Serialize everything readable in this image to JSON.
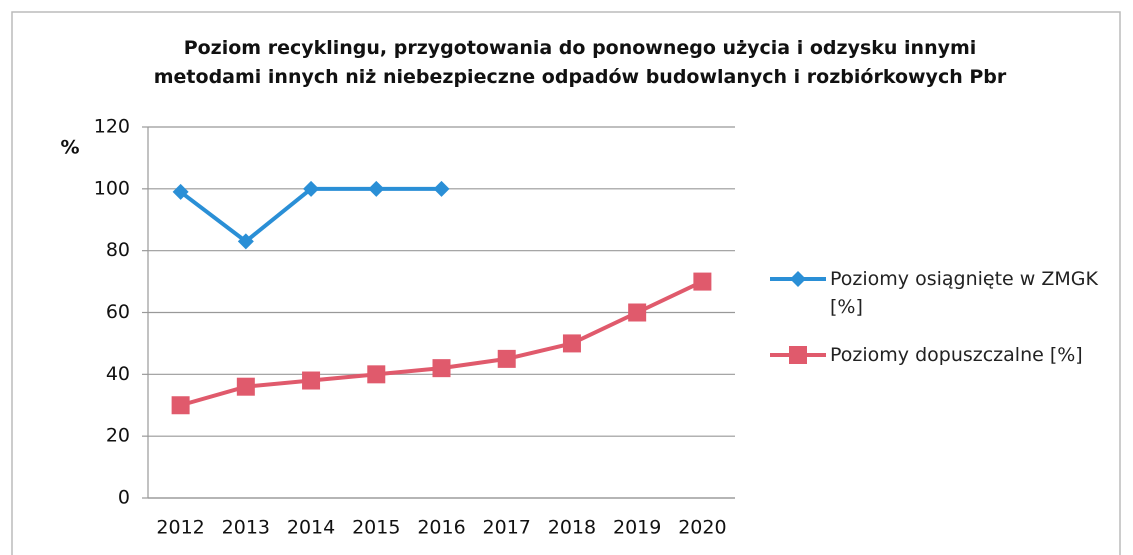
{
  "chart_data": {
    "type": "line",
    "title": "Poziom recyklingu, przygotowania do ponownego użycia i odzysku innymi metodami innych niż niebezpieczne odpadów budowlanych i rozbiórkowych Pbr",
    "ylabel": "%",
    "categories": [
      "2012",
      "2013",
      "2014",
      "2015",
      "2016",
      "2017",
      "2018",
      "2019",
      "2020"
    ],
    "series": [
      {
        "name": "Poziomy osiągnięte w ZMGK [%]",
        "color": "#2a8fd6",
        "marker": "diamond",
        "values": [
          99,
          83,
          100,
          100,
          100,
          null,
          null,
          null,
          null
        ]
      },
      {
        "name": "Poziomy dopuszczalne [%]",
        "color": "#e05a6c",
        "marker": "square",
        "values": [
          30,
          36,
          38,
          40,
          42,
          45,
          50,
          60,
          70
        ]
      }
    ],
    "ylim": [
      0,
      120
    ],
    "yticks": [
      0,
      20,
      40,
      60,
      80,
      100,
      120
    ],
    "grid": true
  }
}
